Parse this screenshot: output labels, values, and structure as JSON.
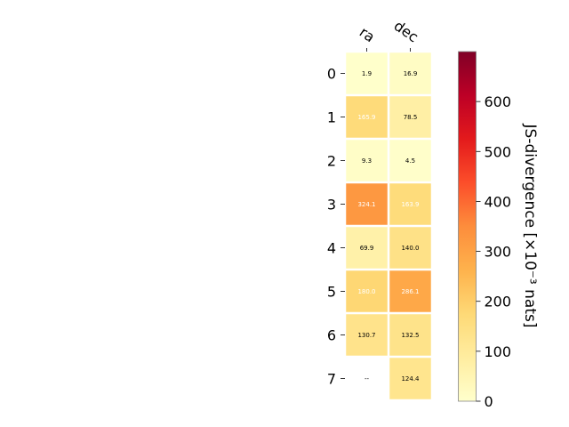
{
  "chart_data": {
    "type": "heatmap",
    "columns": [
      "ra",
      "dec"
    ],
    "rows": [
      "0",
      "1",
      "2",
      "3",
      "4",
      "5",
      "6",
      "7"
    ],
    "values": [
      [
        1.9,
        16.9
      ],
      [
        165.9,
        78.5
      ],
      [
        9.3,
        4.5
      ],
      [
        324.1,
        163.9
      ],
      [
        69.9,
        140.0
      ],
      [
        180.0,
        286.1
      ],
      [
        130.7,
        132.5
      ],
      [
        null,
        124.4
      ]
    ],
    "cell_labels": [
      [
        "1.9",
        "16.9"
      ],
      [
        "165.9",
        "78.5"
      ],
      [
        "9.3",
        "4.5"
      ],
      [
        "324.1",
        "163.9"
      ],
      [
        "69.9",
        "140.0"
      ],
      [
        "180.0",
        "286.1"
      ],
      [
        "130.7",
        "132.5"
      ],
      [
        "--",
        "124.4"
      ]
    ],
    "masked_cell_background": [
      "#ffffff",
      "#ffffcc"
    ],
    "colormap": "YlOrRd",
    "colormap_stops": [
      "#ffffcc",
      "#ffeda0",
      "#fed976",
      "#feb24c",
      "#fd8d3c",
      "#fc4e2a",
      "#e31a1c",
      "#bd0026",
      "#800026"
    ],
    "colorbar": {
      "label": "JS-divergence [×10⁻³ nats]",
      "range": [
        0,
        700
      ],
      "ticks": [
        "0",
        "100",
        "200",
        "300",
        "400",
        "500",
        "600"
      ]
    },
    "text_color_dark": "#000000",
    "text_color_light": "#ffffff",
    "light_text_threshold": 150,
    "grid": false
  }
}
